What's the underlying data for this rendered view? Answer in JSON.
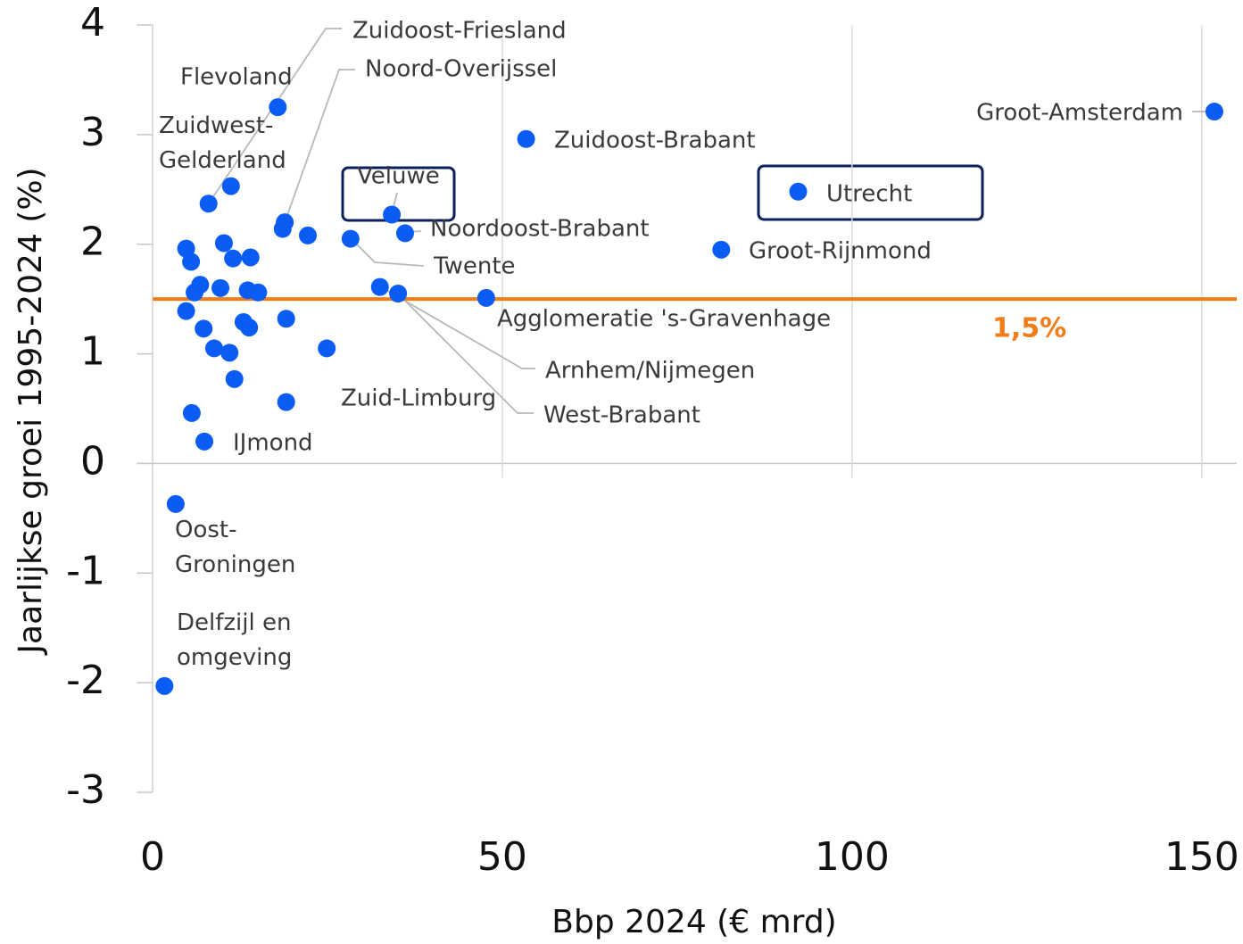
{
  "chart_data": {
    "type": "scatter",
    "xlabel": "Bbp 2024 (€ mrd)",
    "ylabel": "Jaarlijkse groei 1995-2024 (%)",
    "xlim": [
      -2.5,
      155
    ],
    "ylim": [
      -3,
      4
    ],
    "xticks": [
      0,
      50,
      100,
      150
    ],
    "yticks": [
      -3,
      -2,
      -1,
      0,
      1,
      2,
      3,
      4
    ],
    "grid": true,
    "reference_line": {
      "value": 1.5,
      "label": "1,5%",
      "color": "#f07d1a"
    },
    "series": [
      {
        "color": "#0a5cf5",
        "x": [
          151.8,
          53.4,
          92.3,
          81.3,
          47.7,
          34.2,
          36.1,
          28.3,
          32.5,
          35.1,
          24.9,
          17.9,
          8.0,
          18.9,
          11.2,
          7.4,
          3.3,
          1.7,
          4.8,
          5.5,
          10.2,
          11.5,
          14.0,
          6.8,
          6.0,
          9.7,
          13.6,
          15.1,
          4.8,
          7.3,
          8.8,
          11.0,
          13.0,
          13.8,
          11.7,
          5.6,
          19.1,
          19.1,
          18.6,
          22.2
        ],
        "values": [
          3.21,
          2.96,
          2.48,
          1.95,
          1.51,
          2.27,
          2.1,
          2.05,
          1.61,
          1.55,
          1.05,
          3.25,
          2.37,
          2.2,
          2.53,
          0.2,
          -0.37,
          -2.03,
          1.96,
          1.84,
          2.01,
          1.87,
          1.88,
          1.63,
          1.56,
          1.6,
          1.58,
          1.56,
          1.39,
          1.23,
          1.05,
          1.01,
          1.29,
          1.24,
          0.77,
          0.46,
          1.32,
          0.56,
          2.14,
          2.08
        ],
        "labels": [
          "Groot-Amsterdam",
          "Zuidoost-Brabant",
          "Utrecht",
          "Groot-Rijnmond",
          "Agglomeratie 's-Gravenhage",
          "Veluwe",
          "Noordoost-Brabant",
          "Twente",
          "Arnhem/Nijmegen",
          "West-Brabant",
          "Zuid-Limburg",
          "Flevoland",
          "Zuidoost-Friesland",
          "Noord-Overijssel",
          "Zuidwest-\nGelderland",
          "IJmond",
          "Oost-\nGroningen",
          "Delfzijl en\nomgeving",
          null,
          null,
          null,
          null,
          null,
          null,
          null,
          null,
          null,
          null,
          null,
          null,
          null,
          null,
          null,
          null,
          null,
          null,
          null,
          null,
          null,
          null
        ]
      }
    ]
  }
}
